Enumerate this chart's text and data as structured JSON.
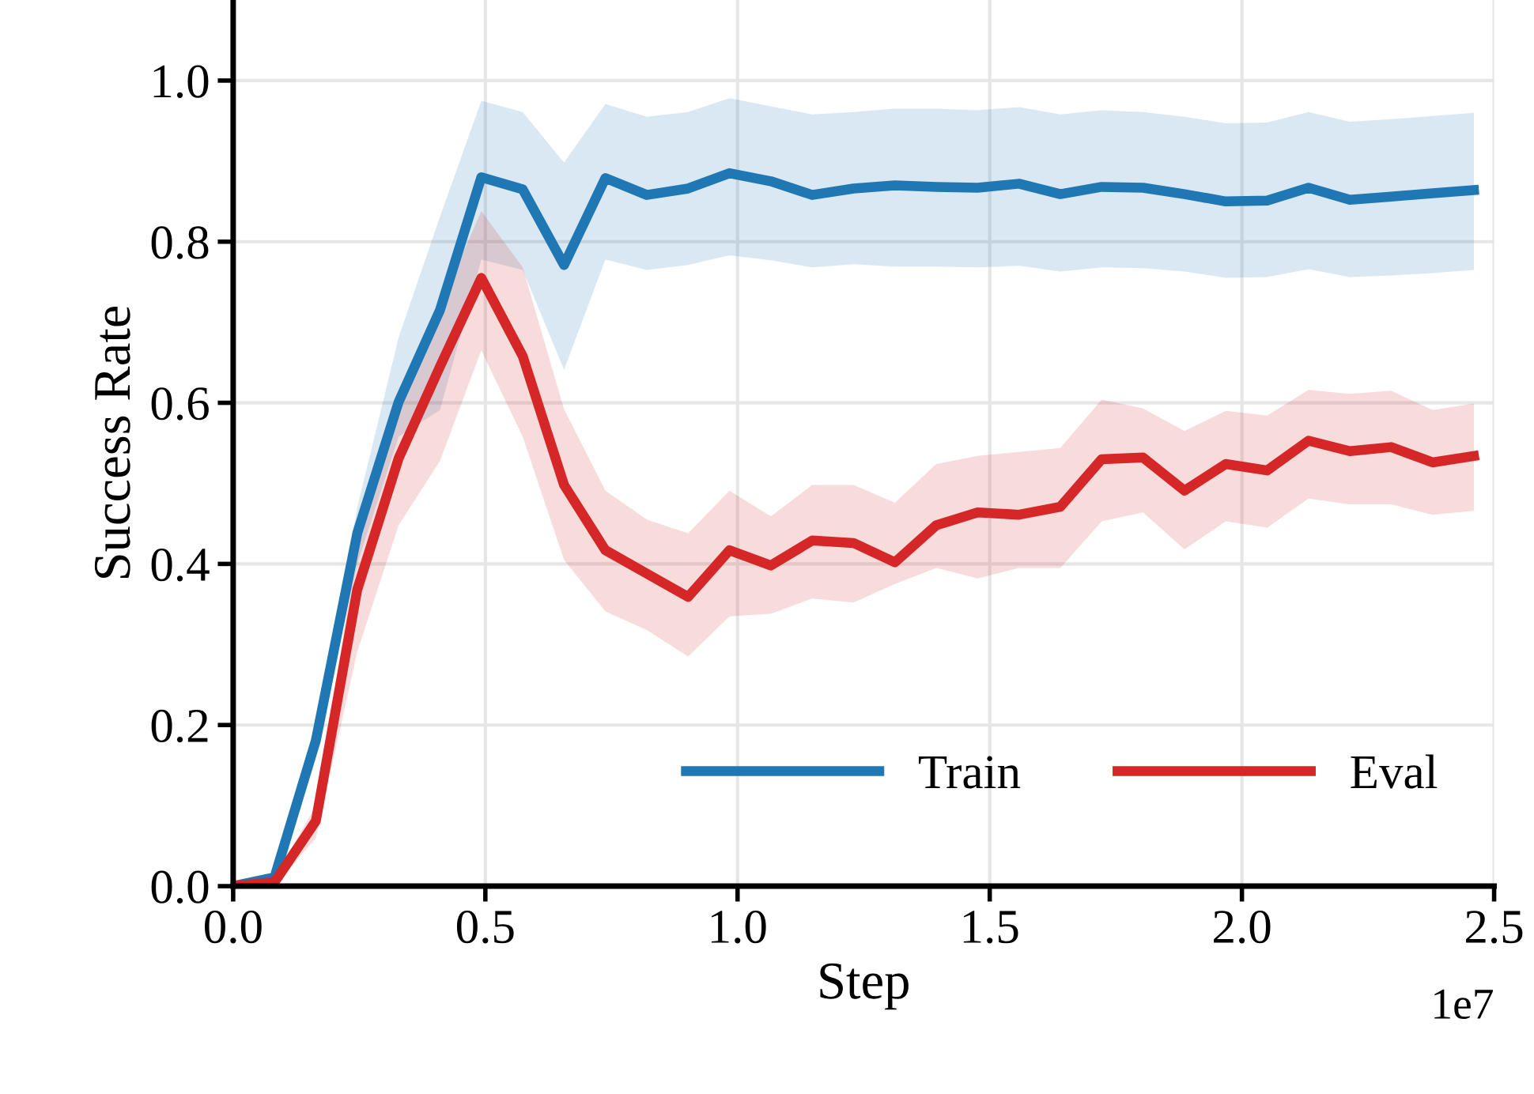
{
  "chart_data": {
    "type": "line",
    "xlabel": "Step",
    "ylabel": "Success Rate",
    "x": [
      0,
      0.082,
      0.164,
      0.246,
      0.328,
      0.41,
      0.492,
      0.574,
      0.656,
      0.738,
      0.82,
      0.902,
      0.984,
      1.066,
      1.148,
      1.23,
      1.312,
      1.394,
      1.476,
      1.558,
      1.64,
      1.722,
      1.804,
      1.886,
      1.968,
      2.05,
      2.132,
      2.214,
      2.296,
      2.378,
      2.46
    ],
    "series": [
      {
        "name": "Train",
        "color": "#1f77b4",
        "values": [
          0.0,
          0.011,
          0.181,
          0.438,
          0.601,
          0.715,
          0.88,
          0.865,
          0.771,
          0.879,
          0.858,
          0.866,
          0.885,
          0.875,
          0.858,
          0.866,
          0.87,
          0.868,
          0.867,
          0.872,
          0.859,
          0.868,
          0.867,
          0.859,
          0.85,
          0.851,
          0.867,
          0.852,
          0.856,
          0.86,
          0.864
        ],
        "lower": [
          0.0,
          0.01,
          0.17,
          0.4,
          0.558,
          0.591,
          0.778,
          0.765,
          0.641,
          0.778,
          0.765,
          0.771,
          0.783,
          0.777,
          0.768,
          0.772,
          0.769,
          0.769,
          0.768,
          0.77,
          0.763,
          0.768,
          0.767,
          0.763,
          0.755,
          0.756,
          0.766,
          0.756,
          0.758,
          0.761,
          0.765
        ],
        "upper": [
          0.0,
          0.012,
          0.19,
          0.47,
          0.681,
          0.831,
          0.975,
          0.961,
          0.898,
          0.971,
          0.955,
          0.961,
          0.978,
          0.968,
          0.958,
          0.961,
          0.965,
          0.965,
          0.963,
          0.967,
          0.958,
          0.963,
          0.961,
          0.955,
          0.947,
          0.948,
          0.961,
          0.949,
          0.952,
          0.956,
          0.96
        ]
      },
      {
        "name": "Eval",
        "color": "#d62728",
        "values": [
          0.0,
          0.005,
          0.081,
          0.368,
          0.531,
          0.645,
          0.755,
          0.658,
          0.498,
          0.417,
          0.388,
          0.359,
          0.417,
          0.398,
          0.429,
          0.426,
          0.402,
          0.448,
          0.464,
          0.461,
          0.471,
          0.53,
          0.532,
          0.491,
          0.524,
          0.516,
          0.553,
          0.54,
          0.545,
          0.526,
          0.534
        ],
        "lower": [
          0.0,
          0.0,
          0.06,
          0.291,
          0.448,
          0.528,
          0.665,
          0.558,
          0.405,
          0.341,
          0.318,
          0.285,
          0.335,
          0.338,
          0.357,
          0.352,
          0.375,
          0.395,
          0.382,
          0.395,
          0.395,
          0.453,
          0.464,
          0.418,
          0.453,
          0.445,
          0.481,
          0.474,
          0.474,
          0.461,
          0.466
        ],
        "upper": [
          0.0,
          0.01,
          0.1,
          0.42,
          0.6,
          0.72,
          0.838,
          0.768,
          0.592,
          0.491,
          0.455,
          0.438,
          0.491,
          0.459,
          0.498,
          0.498,
          0.476,
          0.524,
          0.534,
          0.539,
          0.544,
          0.604,
          0.593,
          0.565,
          0.59,
          0.584,
          0.616,
          0.611,
          0.615,
          0.591,
          0.599
        ]
      }
    ],
    "xlim": [
      0,
      2.5
    ],
    "xticks": [
      {
        "value": 0,
        "label": "0.0"
      },
      0.5,
      {
        "value": 1,
        "label": "1.0"
      },
      1.5,
      {
        "value": 2,
        "label": "2.0"
      },
      2.5
    ],
    "ylim": [
      0,
      1.1
    ],
    "yticks": [
      {
        "value": 0,
        "label": "0.0"
      },
      0.2,
      0.4,
      0.6,
      0.8,
      {
        "value": 1,
        "label": "1.0"
      }
    ],
    "annotations": [
      "1e7"
    ],
    "grid": true,
    "legend": "bottom right",
    "line_style": "solid",
    "marker": "none"
  }
}
